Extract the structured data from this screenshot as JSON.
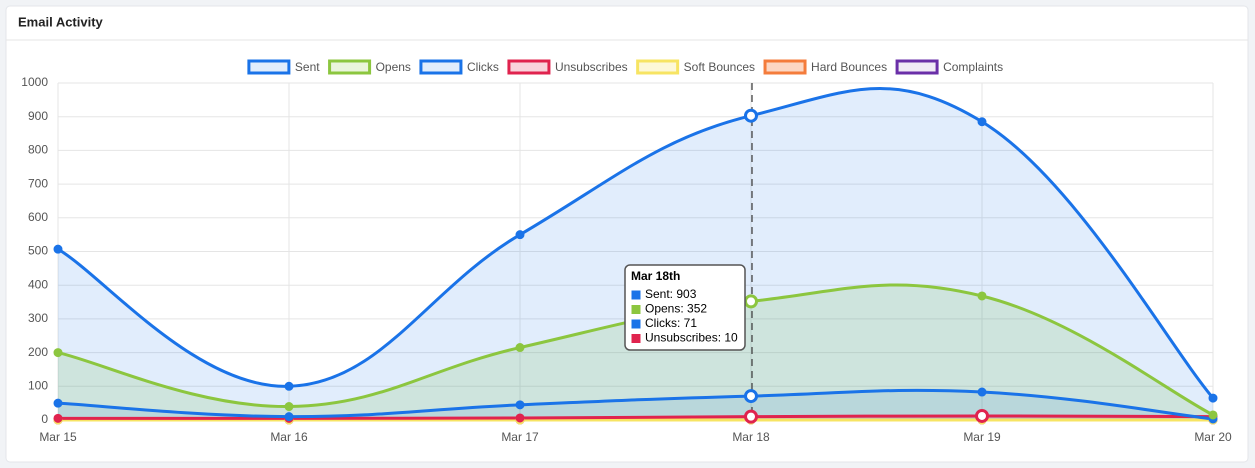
{
  "chart_data": {
    "type": "line",
    "title": "Email Activity",
    "categories": [
      "Mar 15",
      "Mar 16",
      "Mar 17",
      "Mar 18",
      "Mar 19",
      "Mar 20"
    ],
    "series": [
      {
        "name": "Sent",
        "color": "#1a73e8",
        "fill": "rgba(26,115,232,0.13)",
        "values": [
          507,
          100,
          550,
          903,
          885,
          65
        ]
      },
      {
        "name": "Opens",
        "color": "#8cc63f",
        "fill": "rgba(140,198,63,0.18)",
        "values": [
          200,
          40,
          215,
          352,
          368,
          15
        ]
      },
      {
        "name": "Clicks",
        "color": "#1a73e8",
        "fill": "rgba(26,115,232,0.13)",
        "values": [
          50,
          10,
          45,
          71,
          83,
          3
        ]
      },
      {
        "name": "Unsubscribes",
        "color": "#e0234e",
        "fill": "rgba(224,35,78,0.2)",
        "values": [
          5,
          5,
          6,
          10,
          12,
          10
        ]
      },
      {
        "name": "Soft Bounces",
        "color": "#f7e463",
        "fill": "rgba(247,228,99,0.25)",
        "values": [
          0,
          0,
          0,
          0,
          0,
          0
        ]
      },
      {
        "name": "Hard Bounces",
        "color": "#f47c3c",
        "fill": "rgba(244,124,60,0.3)",
        "values": [
          0,
          0,
          0,
          0,
          0,
          0
        ]
      },
      {
        "name": "Complaints",
        "color": "#6a2fa8",
        "fill": "rgba(106,47,168,0.1)",
        "values": [
          0,
          0,
          0,
          0,
          0,
          0
        ]
      }
    ],
    "ylim": [
      0,
      1000
    ],
    "yticks": [
      0,
      100,
      200,
      300,
      400,
      500,
      600,
      700,
      800,
      900,
      1000
    ],
    "grid": true,
    "legend": "top",
    "tooltip": {
      "title": "Mar 18th",
      "lines": [
        "Sent: 903",
        "Opens: 352",
        "Clicks: 71",
        "Unsubscribes: 10"
      ]
    }
  }
}
